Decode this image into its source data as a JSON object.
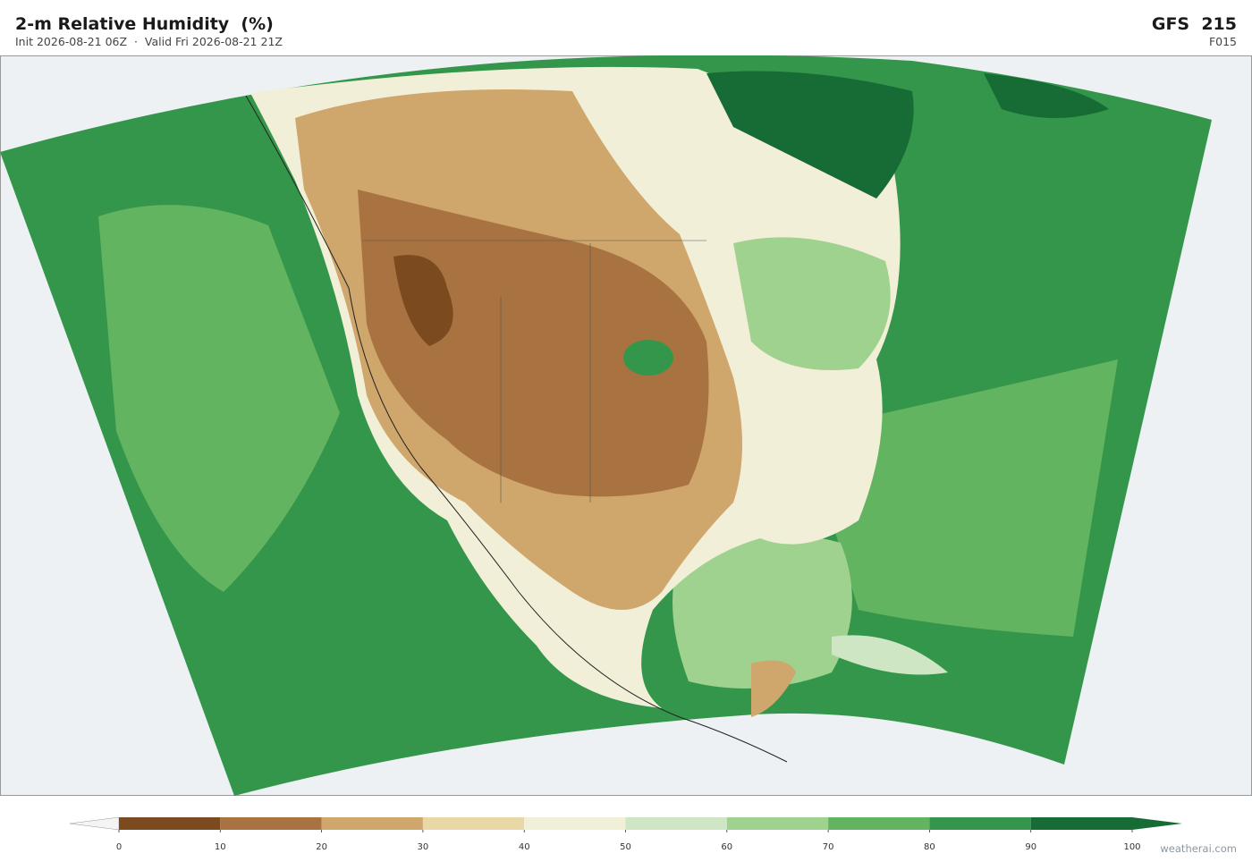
{
  "header": {
    "title": "2-m Relative Humidity  (%)",
    "subtitle": "Init 2026-08-21 06Z  ·  Valid Fri 2026-08-21 21Z",
    "model": "GFS  215",
    "forecast_hour": "F015"
  },
  "colorbar": {
    "lim": [
      0,
      100
    ],
    "ticks": [
      0,
      10,
      20,
      30,
      40,
      50,
      60,
      70,
      80,
      90,
      100
    ],
    "colors": [
      "#7b4a1e",
      "#a87341",
      "#cfa66b",
      "#ead7a6",
      "#f2efd9",
      "#cfe6c4",
      "#9fd18f",
      "#62b460",
      "#34964a",
      "#176b34"
    ]
  },
  "watermark": "weatherai.com"
}
